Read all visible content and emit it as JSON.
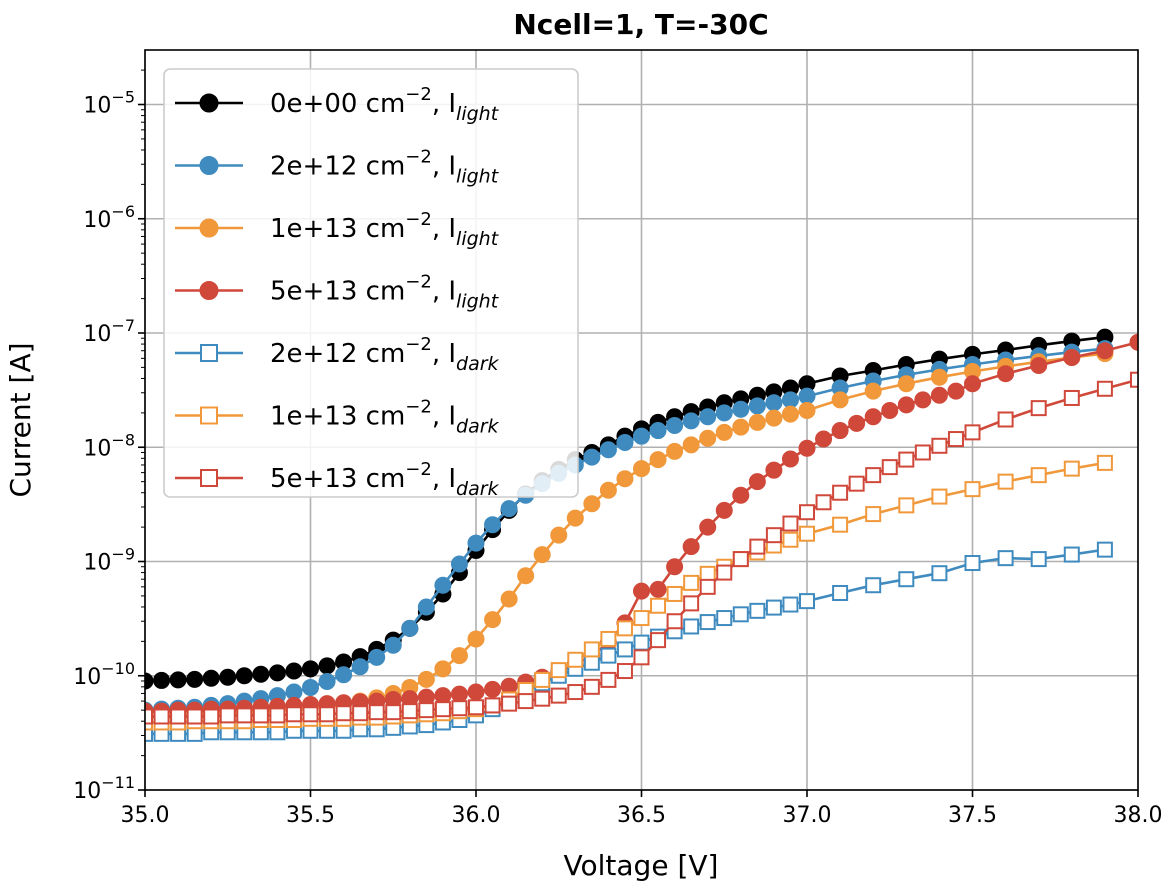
{
  "chart_data": {
    "type": "line",
    "title": "Ncell=1, T=-30C",
    "xlabel": "Voltage [V]",
    "ylabel": "Current [A]",
    "xscale": "linear",
    "yscale": "log",
    "xlim": [
      35.0,
      38.0
    ],
    "ylim": [
      1e-11,
      3e-05
    ],
    "grid": true,
    "legend_position": "top-left",
    "x_ticks": [
      35.0,
      35.5,
      36.0,
      36.5,
      37.0,
      37.5,
      38.0
    ],
    "x_tick_labels": [
      "35.0",
      "35.5",
      "36.0",
      "36.5",
      "37.0",
      "37.5",
      "38.0"
    ],
    "y_ticks": [
      -11,
      -10,
      -9,
      -8,
      -7,
      -6,
      -5
    ],
    "y_tick_base": "10",
    "y_tick_exponents": [
      "−11",
      "−10",
      "−9",
      "−8",
      "−7",
      "−6",
      "−5"
    ],
    "series": [
      {
        "name": "0e+00 cm⁻², I_light",
        "label_main": "0e+00 cm",
        "label_sup": "−2",
        "label_comma": ", I",
        "label_sub": "light",
        "color": "#000000",
        "marker": "filled-circle",
        "x": [
          35.0,
          35.05,
          35.1,
          35.15,
          35.2,
          35.25,
          35.3,
          35.35,
          35.4,
          35.45,
          35.5,
          35.55,
          35.6,
          35.65,
          35.7,
          35.75,
          35.8,
          35.85,
          35.9,
          35.95,
          36.0,
          36.05,
          36.1,
          36.15,
          36.2,
          36.25,
          36.3,
          36.35,
          36.4,
          36.45,
          36.5,
          36.55,
          36.6,
          36.65,
          36.7,
          36.75,
          36.8,
          36.85,
          36.9,
          36.95,
          37.0,
          37.1,
          37.2,
          37.3,
          37.4,
          37.5,
          37.6,
          37.7,
          37.8,
          37.9
        ],
        "y": [
          9e-11,
          9.1e-11,
          9.2e-11,
          9.3e-11,
          9.5e-11,
          9.7e-11,
          1e-10,
          1.03e-10,
          1.06e-10,
          1.1e-10,
          1.15e-10,
          1.22e-10,
          1.32e-10,
          1.47e-10,
          1.7e-10,
          2.05e-10,
          2.6e-10,
          3.6e-10,
          5.2e-10,
          8e-10,
          1.25e-09,
          1.9e-09,
          2.8e-09,
          3.9e-09,
          5.1e-09,
          6.4e-09,
          7.8e-09,
          9e-09,
          1.05e-08,
          1.25e-08,
          1.45e-08,
          1.65e-08,
          1.85e-08,
          2.05e-08,
          2.25e-08,
          2.45e-08,
          2.65e-08,
          2.85e-08,
          3.05e-08,
          3.3e-08,
          3.6e-08,
          4.2e-08,
          4.7e-08,
          5.3e-08,
          5.9e-08,
          6.5e-08,
          7.1e-08,
          7.8e-08,
          8.5e-08,
          9.2e-08
        ]
      },
      {
        "name": "2e+12 cm⁻², I_light",
        "label_main": "2e+12 cm",
        "label_sup": "−2",
        "label_comma": ", I",
        "label_sub": "light",
        "color": "#3f8bbf",
        "marker": "filled-circle",
        "x": [
          35.0,
          35.05,
          35.1,
          35.15,
          35.2,
          35.25,
          35.3,
          35.35,
          35.4,
          35.45,
          35.5,
          35.55,
          35.6,
          35.65,
          35.7,
          35.75,
          35.8,
          35.85,
          35.9,
          35.95,
          36.0,
          36.05,
          36.1,
          36.15,
          36.2,
          36.25,
          36.3,
          36.35,
          36.4,
          36.45,
          36.5,
          36.55,
          36.6,
          36.65,
          36.7,
          36.75,
          36.8,
          36.85,
          36.9,
          36.95,
          37.0,
          37.1,
          37.2,
          37.3,
          37.4,
          37.5,
          37.6,
          37.7,
          37.8,
          37.9
        ],
        "y": [
          5e-11,
          5.1e-11,
          5.2e-11,
          5.3e-11,
          5.5e-11,
          5.7e-11,
          6e-11,
          6.3e-11,
          6.7e-11,
          7.2e-11,
          7.9e-11,
          8.9e-11,
          1.02e-10,
          1.2e-10,
          1.45e-10,
          1.85e-10,
          2.6e-10,
          4e-10,
          6.2e-10,
          9.5e-10,
          1.45e-09,
          2.1e-09,
          2.9e-09,
          3.8e-09,
          4.8e-09,
          5.9e-09,
          7e-09,
          8.2e-09,
          9.5e-09,
          1.1e-08,
          1.25e-08,
          1.4e-08,
          1.55e-08,
          1.7e-08,
          1.85e-08,
          2e-08,
          2.15e-08,
          2.3e-08,
          2.45e-08,
          2.6e-08,
          2.8e-08,
          3.3e-08,
          3.8e-08,
          4.3e-08,
          4.8e-08,
          5.3e-08,
          5.8e-08,
          6.3e-08,
          6.8e-08,
          7.3e-08
        ]
      },
      {
        "name": "1e+13 cm⁻², I_light",
        "label_main": "1e+13 cm",
        "label_sup": "−2",
        "label_comma": ", I",
        "label_sub": "light",
        "color": "#f0983a",
        "marker": "filled-circle",
        "x": [
          35.0,
          35.05,
          35.1,
          35.15,
          35.2,
          35.25,
          35.3,
          35.35,
          35.4,
          35.45,
          35.5,
          35.55,
          35.6,
          35.65,
          35.7,
          35.75,
          35.8,
          35.85,
          35.9,
          35.95,
          36.0,
          36.05,
          36.1,
          36.15,
          36.2,
          36.25,
          36.3,
          36.35,
          36.4,
          36.45,
          36.5,
          36.55,
          36.6,
          36.65,
          36.7,
          36.75,
          36.8,
          36.85,
          36.9,
          36.95,
          37.0,
          37.1,
          37.2,
          37.3,
          37.4,
          37.5,
          37.6,
          37.7,
          37.8,
          37.9
        ],
        "y": [
          4.4e-11,
          4.4e-11,
          4.5e-11,
          4.5e-11,
          4.6e-11,
          4.7e-11,
          4.8e-11,
          4.9e-11,
          5e-11,
          5.1e-11,
          5.3e-11,
          5.5e-11,
          5.7e-11,
          6e-11,
          6.4e-11,
          7e-11,
          7.9e-11,
          9.3e-11,
          1.15e-10,
          1.5e-10,
          2.1e-10,
          3.1e-10,
          4.7e-10,
          7.5e-10,
          1.15e-09,
          1.7e-09,
          2.4e-09,
          3.2e-09,
          4.2e-09,
          5.3e-09,
          6.5e-09,
          7.8e-09,
          9.2e-09,
          1.05e-08,
          1.2e-08,
          1.35e-08,
          1.5e-08,
          1.65e-08,
          1.8e-08,
          1.95e-08,
          2.1e-08,
          2.6e-08,
          3.1e-08,
          3.6e-08,
          4.1e-08,
          4.6e-08,
          5.1e-08,
          5.6e-08,
          6.1e-08,
          6.6e-08
        ]
      },
      {
        "name": "5e+13 cm⁻², I_light",
        "label_main": "5e+13 cm",
        "label_sup": "−2",
        "label_comma": ", I",
        "label_sub": "light",
        "color": "#d0483a",
        "marker": "filled-circle",
        "x": [
          35.0,
          35.05,
          35.1,
          35.15,
          35.2,
          35.25,
          35.3,
          35.35,
          35.4,
          35.45,
          35.5,
          35.55,
          35.6,
          35.65,
          35.7,
          35.75,
          35.8,
          35.85,
          35.9,
          35.95,
          36.0,
          36.05,
          36.1,
          36.15,
          36.2,
          36.25,
          36.3,
          36.35,
          36.4,
          36.45,
          36.5,
          36.55,
          36.6,
          36.65,
          36.7,
          36.75,
          36.8,
          36.85,
          36.9,
          36.95,
          37.0,
          37.05,
          37.1,
          37.15,
          37.2,
          37.25,
          37.3,
          37.35,
          37.4,
          37.45,
          37.5,
          37.6,
          37.7,
          37.8,
          37.9,
          38.0
        ],
        "y": [
          4.9e-11,
          4.9e-11,
          5e-11,
          5e-11,
          5.1e-11,
          5.1e-11,
          5.2e-11,
          5.3e-11,
          5.4e-11,
          5.5e-11,
          5.6e-11,
          5.7e-11,
          5.8e-11,
          5.9e-11,
          6e-11,
          6.2e-11,
          6.3e-11,
          6.5e-11,
          6.7e-11,
          6.9e-11,
          7.2e-11,
          7.6e-11,
          8.1e-11,
          8.8e-11,
          9.7e-11,
          1.08e-10,
          1.25e-10,
          1.5e-10,
          1.95e-10,
          2.9e-10,
          5.5e-10,
          5.7e-10,
          9e-10,
          1.35e-09,
          2e-09,
          2.8e-09,
          3.8e-09,
          5e-09,
          6.3e-09,
          7.9e-09,
          9.8e-09,
          1.18e-08,
          1.4e-08,
          1.62e-08,
          1.85e-08,
          2.1e-08,
          2.35e-08,
          2.6e-08,
          2.85e-08,
          3.1e-08,
          3.6e-08,
          4.4e-08,
          5.2e-08,
          6.1e-08,
          7e-08,
          8.3e-08
        ]
      },
      {
        "name": "2e+12 cm⁻², I_dark",
        "label_main": "2e+12 cm",
        "label_sup": "−2",
        "label_comma": ", I",
        "label_sub": "dark",
        "color": "#3f8bbf",
        "marker": "open-square",
        "x": [
          35.0,
          35.05,
          35.1,
          35.15,
          35.2,
          35.25,
          35.3,
          35.35,
          35.4,
          35.45,
          35.5,
          35.55,
          35.6,
          35.65,
          35.7,
          35.75,
          35.8,
          35.85,
          35.9,
          35.95,
          36.0,
          36.05,
          36.1,
          36.15,
          36.2,
          36.25,
          36.3,
          36.35,
          36.4,
          36.45,
          36.5,
          36.55,
          36.6,
          36.65,
          36.7,
          36.75,
          36.8,
          36.85,
          36.9,
          36.95,
          37.0,
          37.1,
          37.2,
          37.3,
          37.4,
          37.5,
          37.6,
          37.7,
          37.8,
          37.9
        ],
        "y": [
          3.1e-11,
          3.1e-11,
          3.1e-11,
          3.1e-11,
          3.2e-11,
          3.2e-11,
          3.2e-11,
          3.2e-11,
          3.2e-11,
          3.3e-11,
          3.3e-11,
          3.3e-11,
          3.3e-11,
          3.4e-11,
          3.4e-11,
          3.5e-11,
          3.6e-11,
          3.7e-11,
          3.9e-11,
          4.1e-11,
          4.5e-11,
          5.1e-11,
          6.1e-11,
          7.3e-11,
          8.6e-11,
          1e-10,
          1.15e-10,
          1.3e-10,
          1.5e-10,
          1.7e-10,
          1.95e-10,
          2.2e-10,
          2.45e-10,
          2.7e-10,
          2.95e-10,
          3.2e-10,
          3.45e-10,
          3.7e-10,
          3.95e-10,
          4.2e-10,
          4.5e-10,
          5.3e-10,
          6.2e-10,
          7e-10,
          7.9e-10,
          9.7e-10,
          1.07e-09,
          1.05e-09,
          1.15e-09,
          1.27e-09
        ]
      },
      {
        "name": "1e+13 cm⁻², I_dark",
        "label_main": "1e+13 cm",
        "label_sup": "−2",
        "label_comma": ", I",
        "label_sub": "dark",
        "color": "#f0983a",
        "marker": "open-square",
        "x": [
          35.0,
          35.05,
          35.1,
          35.15,
          35.2,
          35.25,
          35.3,
          35.35,
          35.4,
          35.45,
          35.5,
          35.55,
          35.6,
          35.65,
          35.7,
          35.75,
          35.8,
          35.85,
          35.9,
          35.95,
          36.0,
          36.05,
          36.1,
          36.15,
          36.2,
          36.25,
          36.3,
          36.35,
          36.4,
          36.45,
          36.5,
          36.55,
          36.6,
          36.65,
          36.7,
          36.75,
          36.8,
          36.85,
          36.9,
          36.95,
          37.0,
          37.1,
          37.2,
          37.3,
          37.4,
          37.5,
          37.6,
          37.7,
          37.8,
          37.9
        ],
        "y": [
          3.9e-11,
          3.9e-11,
          3.9e-11,
          4e-11,
          4e-11,
          4e-11,
          4e-11,
          4.1e-11,
          4.1e-11,
          4.1e-11,
          4.2e-11,
          4.2e-11,
          4.2e-11,
          4.3e-11,
          4.3e-11,
          4.4e-11,
          4.5e-11,
          4.6e-11,
          4.7e-11,
          4.9e-11,
          5.1e-11,
          5.5e-11,
          6.2e-11,
          7.5e-11,
          9.2e-11,
          1.12e-10,
          1.38e-10,
          1.7e-10,
          2.1e-10,
          2.6e-10,
          3.2e-10,
          4.1e-10,
          5.2e-10,
          6.5e-10,
          7.8e-10,
          9e-10,
          1.05e-09,
          1.2e-09,
          1.38e-09,
          1.55e-09,
          1.75e-09,
          2.1e-09,
          2.6e-09,
          3.1e-09,
          3.7e-09,
          4.3e-09,
          5e-09,
          5.7e-09,
          6.5e-09,
          7.3e-09
        ]
      },
      {
        "name": "5e+13 cm⁻², I_dark",
        "label_main": "5e+13 cm",
        "label_sup": "−2",
        "label_comma": ", I",
        "label_sub": "dark",
        "color": "#d0483a",
        "marker": "open-square",
        "x": [
          35.0,
          35.05,
          35.1,
          35.15,
          35.2,
          35.25,
          35.3,
          35.35,
          35.4,
          35.45,
          35.5,
          35.55,
          35.6,
          35.65,
          35.7,
          35.75,
          35.8,
          35.85,
          35.9,
          35.95,
          36.0,
          36.05,
          36.1,
          36.15,
          36.2,
          36.25,
          36.3,
          36.35,
          36.4,
          36.45,
          36.5,
          36.55,
          36.6,
          36.65,
          36.7,
          36.75,
          36.8,
          36.85,
          36.9,
          36.95,
          37.0,
          37.05,
          37.1,
          37.15,
          37.2,
          37.25,
          37.3,
          37.35,
          37.4,
          37.45,
          37.5,
          37.6,
          37.7,
          37.8,
          37.9,
          38.0
        ],
        "y": [
          4.4e-11,
          4.4e-11,
          4.4e-11,
          4.4e-11,
          4.4e-11,
          4.5e-11,
          4.5e-11,
          4.5e-11,
          4.5e-11,
          4.6e-11,
          4.6e-11,
          4.6e-11,
          4.7e-11,
          4.7e-11,
          4.8e-11,
          4.8e-11,
          4.9e-11,
          5e-11,
          5.1e-11,
          5.2e-11,
          5.3e-11,
          5.5e-11,
          5.7e-11,
          6e-11,
          6.3e-11,
          6.7e-11,
          7.2e-11,
          8e-11,
          9.2e-11,
          1.1e-10,
          1.45e-10,
          2.05e-10,
          3e-10,
          4.3e-10,
          6e-10,
          8e-10,
          1.05e-09,
          1.35e-09,
          1.7e-09,
          2.15e-09,
          2.7e-09,
          3.3e-09,
          4e-09,
          4.8e-09,
          5.7e-09,
          6.7e-09,
          7.8e-09,
          9e-09,
          1.03e-08,
          1.18e-08,
          1.35e-08,
          1.75e-08,
          2.2e-08,
          2.7e-08,
          3.25e-08,
          3.9e-08
        ]
      }
    ]
  }
}
